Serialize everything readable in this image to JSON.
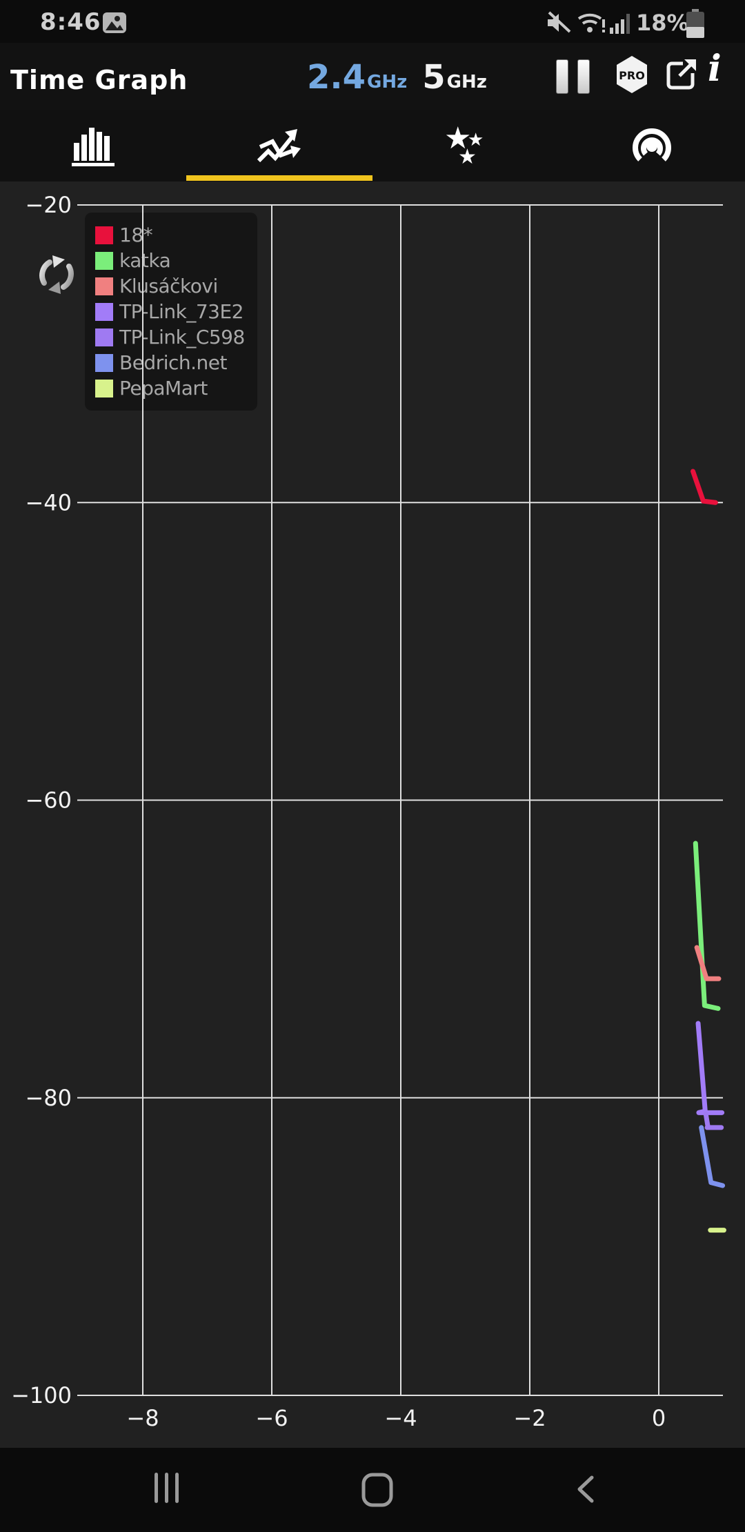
{
  "status_bar": {
    "time": "8:46",
    "battery_percent": "18%",
    "icons": [
      "image-icon",
      "sound-muted-icon",
      "wifi-alert-icon",
      "cell-signal-icon",
      "battery-icon"
    ]
  },
  "header": {
    "title": "Time Graph",
    "band_24_value": "2.4",
    "band_24_unit": "GHz",
    "band_5_value": "5",
    "band_5_unit": "GHz",
    "pro_label": "PRO",
    "icons": [
      "pause-icon",
      "pro-badge",
      "export-icon",
      "info-icon"
    ]
  },
  "tabs": {
    "items": [
      {
        "icon": "channel-bar-chart-icon",
        "selected": false
      },
      {
        "icon": "time-graph-icon",
        "selected": true
      },
      {
        "icon": "ratings-stars-icon",
        "selected": false
      },
      {
        "icon": "access-point-icon",
        "selected": false
      }
    ],
    "indicator_color": "#f0c41e"
  },
  "chart_data": {
    "type": "line",
    "title": "Time Graph (RSSI dBm over time)",
    "xlabel": "",
    "ylabel": "",
    "x_ticks": [
      -8,
      -6,
      -4,
      -2,
      0
    ],
    "y_ticks": [
      -20,
      -40,
      -60,
      -80,
      -100
    ],
    "xlim": [
      -9.0,
      1.05
    ],
    "ylim": [
      -100,
      -20
    ],
    "grid": true,
    "grid_color": "#e0e0e0",
    "legend_position": "top-left",
    "series": [
      {
        "name": "18*",
        "color": "#e8113c",
        "points": [
          [
            0.53,
            -37.9
          ],
          [
            0.69,
            -39.9
          ],
          [
            0.88,
            -40.0
          ]
        ]
      },
      {
        "name": "katka",
        "color": "#7bee7b",
        "points": [
          [
            0.57,
            -62.9
          ],
          [
            0.71,
            -73.8
          ],
          [
            0.92,
            -74.0
          ]
        ]
      },
      {
        "name": "Klusáčkovi",
        "color": "#f08080",
        "points": [
          [
            0.59,
            -69.9
          ],
          [
            0.74,
            -72.0
          ],
          [
            0.93,
            -72.0
          ]
        ]
      },
      {
        "name": "TP-Link_73E2",
        "color": "#a27cf8",
        "points": [
          [
            0.61,
            -75.0
          ],
          [
            0.72,
            -80.9
          ],
          [
            0.62,
            -81.0
          ],
          [
            0.98,
            -81.0
          ]
        ]
      },
      {
        "name": "TP-Link_C598",
        "color": "#9f7af2",
        "points": [
          [
            0.73,
            -81.1
          ],
          [
            0.76,
            -81.9
          ],
          [
            0.75,
            -82.0
          ],
          [
            0.97,
            -82.0
          ]
        ]
      },
      {
        "name": "Bedrich.net",
        "color": "#7e92ee",
        "points": [
          [
            0.66,
            -82.0
          ],
          [
            0.81,
            -85.7
          ],
          [
            0.99,
            -85.9
          ]
        ]
      },
      {
        "name": "PepaMart",
        "color": "#d8f28c",
        "points": [
          [
            0.8,
            -88.9
          ],
          [
            1.01,
            -88.9
          ]
        ]
      }
    ]
  },
  "nav_bar": {
    "icons": [
      "recent-apps-icon",
      "home-icon",
      "back-icon"
    ]
  }
}
